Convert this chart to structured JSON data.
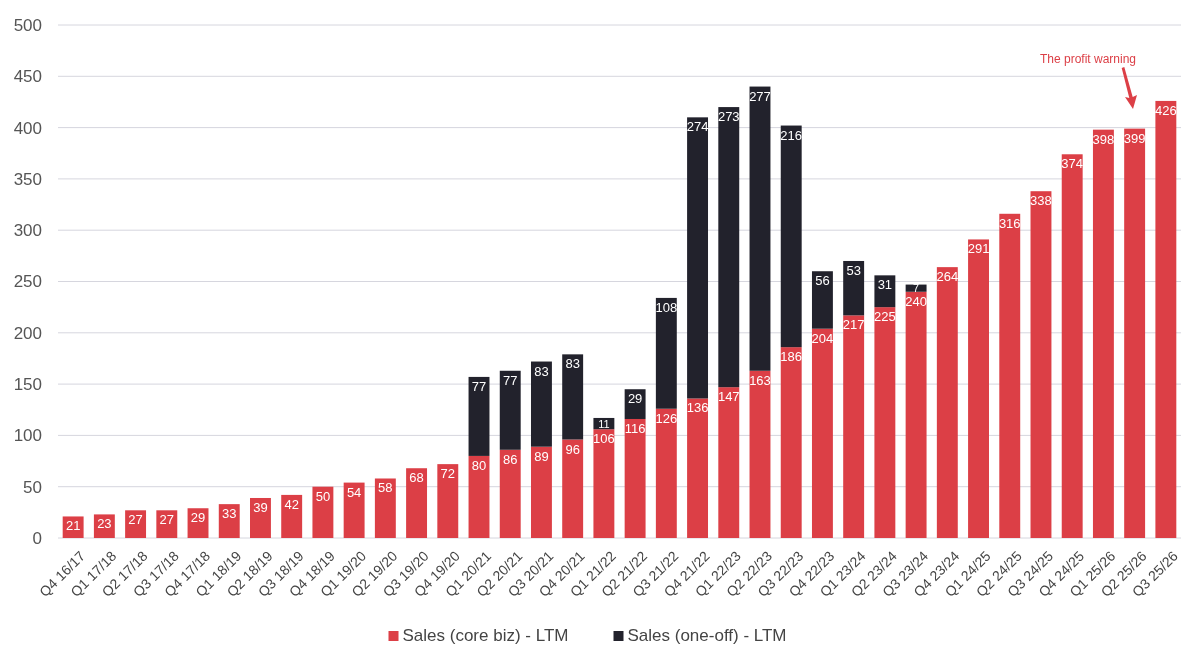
{
  "chart_data": {
    "type": "bar",
    "stacked": true,
    "categories": [
      "Q4 16/17",
      "Q1 17/18",
      "Q2 17/18",
      "Q3 17/18",
      "Q4 17/18",
      "Q1 18/19",
      "Q2 18/19",
      "Q3 18/19",
      "Q4 18/19",
      "Q1 19/20",
      "Q2 19/20",
      "Q3 19/20",
      "Q4 19/20",
      "Q1 20/21",
      "Q2 20/21",
      "Q3 20/21",
      "Q4 20/21",
      "Q1 21/22",
      "Q2 21/22",
      "Q3 21/22",
      "Q4 21/22",
      "Q1 22/23",
      "Q2 22/23",
      "Q3 22/23",
      "Q4 22/23",
      "Q1 23/24",
      "Q2 23/24",
      "Q3 23/24",
      "Q4 23/24",
      "Q1 24/25",
      "Q2 24/25",
      "Q3 24/25",
      "Q4 24/25",
      "Q1 25/26",
      "Q2 25/26",
      "Q3 25/26"
    ],
    "series": [
      {
        "name": "Sales (core biz) - LTM",
        "color": "#dc3f46",
        "values": [
          21,
          23,
          27,
          27,
          29,
          33,
          39,
          42,
          50,
          54,
          58,
          68,
          72,
          80,
          86,
          89,
          96,
          106,
          116,
          126,
          136,
          147,
          163,
          186,
          204,
          217,
          225,
          240,
          264,
          291,
          316,
          338,
          374,
          398,
          399,
          426
        ]
      },
      {
        "name": "Sales (one-off) - LTM",
        "color": "#22222c",
        "values": [
          null,
          null,
          null,
          null,
          null,
          null,
          null,
          null,
          null,
          null,
          null,
          null,
          null,
          77,
          77,
          83,
          83,
          11,
          29,
          108,
          274,
          273,
          277,
          216,
          56,
          53,
          31,
          7,
          null,
          null,
          null,
          null,
          null,
          null,
          null,
          null
        ]
      }
    ],
    "ylim": [
      0,
      500
    ],
    "yticks": [
      0,
      50,
      100,
      150,
      200,
      250,
      300,
      350,
      400,
      450,
      500
    ],
    "grid": "y",
    "legend": "bottom",
    "data_labels": true,
    "annotations": [
      "The profit warning"
    ]
  }
}
